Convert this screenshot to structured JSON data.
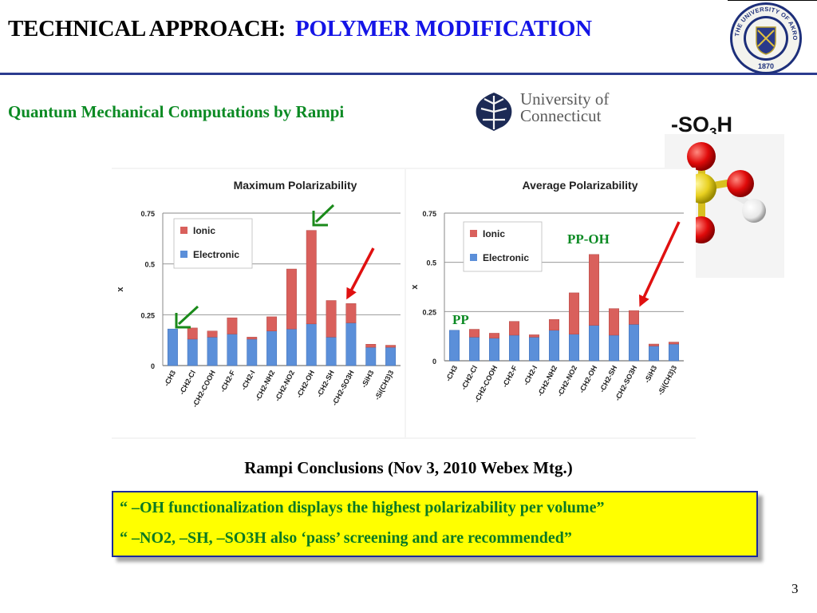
{
  "header": {
    "title_main": "TECHNICAL APPROACH:",
    "title_sub": "POLYMER MODIFICATION"
  },
  "subtitle": "Quantum Mechanical Computations by Rampi",
  "uconn_logo": {
    "line1": "University of",
    "line2": "Connecticut"
  },
  "akron_seal": {
    "ring_top": "THE UNIVERSITY OF AKRON",
    "year": "1870"
  },
  "molecule_label": {
    "prefix": "-SO",
    "subscript": "3",
    "suffix": "H"
  },
  "annotations": {
    "pp_oh": "PP-OH",
    "pp": "PP"
  },
  "colors": {
    "ionic": "#d9605c",
    "electronic": "#5b8fd9",
    "arrow_green": "#1a8a1a",
    "arrow_red": "#e01010",
    "title_blue": "#1414e6",
    "green_text": "#0b8a23"
  },
  "chart_data": [
    {
      "type": "bar",
      "stacked": true,
      "title": "Maximum Polarizability",
      "ylabel": "x",
      "ylim": [
        0,
        0.75
      ],
      "yticks": [
        "0",
        "0.25",
        "0.5",
        "0.75"
      ],
      "categories": [
        "-CH3",
        "-CH2-Cl",
        "-CH2-COOH",
        "-CH2-F",
        "-CH2-I",
        "-CH2-NH2",
        "-CH2-NO2",
        "-CH2-OH",
        "-CH2-SH",
        "-CH2-SO3H",
        "-SiH3",
        "-Si(CH3)3"
      ],
      "legend": [
        "Ionic",
        "Electronic"
      ],
      "series": [
        {
          "name": "Electronic",
          "values": [
            0.18,
            0.13,
            0.14,
            0.155,
            0.13,
            0.17,
            0.18,
            0.205,
            0.14,
            0.21,
            0.09,
            0.09
          ]
        },
        {
          "name": "Ionic",
          "values": [
            0.0,
            0.055,
            0.03,
            0.08,
            0.01,
            0.07,
            0.295,
            0.46,
            0.18,
            0.095,
            0.015,
            0.01
          ]
        }
      ]
    },
    {
      "type": "bar",
      "stacked": true,
      "title": "Average Polarizability",
      "ylabel": "x",
      "ylim": [
        0,
        0.75
      ],
      "yticks": [
        "0",
        "0.25",
        "0.5",
        "0.75"
      ],
      "categories": [
        "-CH3",
        "-CH2-Cl",
        "-CH2-COOH",
        "-CH2-F",
        "-CH2-I",
        "-CH2-NH2",
        "-CH2-NO2",
        "-CH2-OH",
        "-CH2-SH",
        "-CH2-SO3H",
        "-SiH3",
        "-Si(CH3)3"
      ],
      "legend": [
        "Ionic",
        "Electronic"
      ],
      "series": [
        {
          "name": "Electronic",
          "values": [
            0.155,
            0.12,
            0.115,
            0.13,
            0.12,
            0.155,
            0.135,
            0.18,
            0.13,
            0.185,
            0.075,
            0.085
          ]
        },
        {
          "name": "Ionic",
          "values": [
            0.0,
            0.04,
            0.025,
            0.07,
            0.012,
            0.055,
            0.21,
            0.36,
            0.135,
            0.07,
            0.01,
            0.01
          ]
        }
      ]
    }
  ],
  "conclusions": {
    "title": "Rampi Conclusions (Nov 3, 2010 Webex Mtg.)",
    "lines": [
      "“ –OH functionalization displays the highest polarizability per volume”",
      "“ –NO2, –SH, –SO3H also ‘pass’ screening and are recommended”"
    ]
  },
  "page_number": "3"
}
